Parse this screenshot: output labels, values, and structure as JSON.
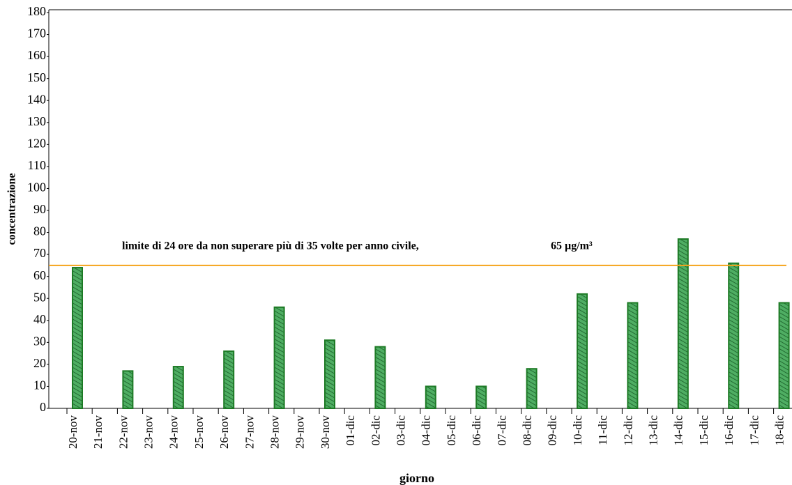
{
  "chart_data": {
    "type": "bar",
    "x_label": "giorno",
    "y_label": "concentrazione",
    "categories": [
      "20-nov",
      "21-nov",
      "22-nov",
      "23-nov",
      "24-nov",
      "25-nov",
      "26-nov",
      "27-nov",
      "28-nov",
      "29-nov",
      "30-nov",
      "01-dic",
      "02-dic",
      "03-dic",
      "04-dic",
      "05-dic",
      "06-dic",
      "07-dic",
      "08-dic",
      "09-dic",
      "10-dic",
      "11-dic",
      "12-dic",
      "13-dic",
      "14-dic",
      "15-dic",
      "16-dic",
      "17-dic",
      "18-dic"
    ],
    "values": [
      64,
      null,
      17,
      null,
      19,
      null,
      26,
      null,
      46,
      null,
      31,
      null,
      28,
      null,
      10,
      null,
      10,
      null,
      18,
      null,
      52,
      null,
      48,
      null,
      77,
      null,
      66,
      null,
      48
    ],
    "color": "#3f9a55",
    "ylim": [
      0,
      180
    ],
    "yticks": [
      0,
      10,
      20,
      30,
      40,
      50,
      60,
      70,
      80,
      90,
      100,
      110,
      120,
      130,
      140,
      150,
      160,
      170,
      180
    ],
    "annotation": "limite di 24 ore da non superare più di 35 volte per anno civile,",
    "threshold": {
      "value": 65,
      "label": "65 µg/m³",
      "color": "#f5a31a"
    }
  }
}
